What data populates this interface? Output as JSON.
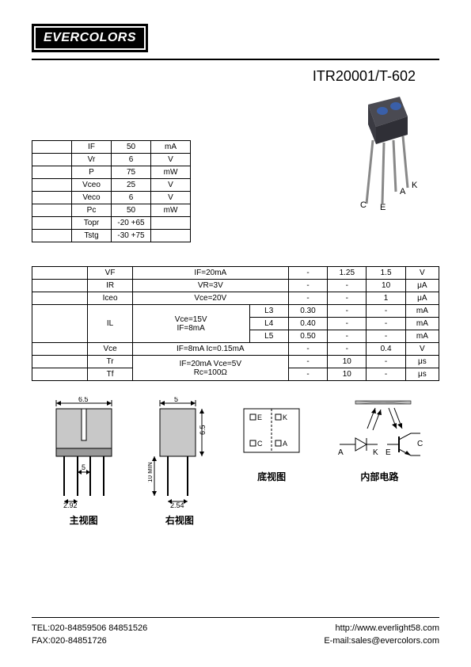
{
  "logo": "EVERCOLORS",
  "part_number": "ITR20001/T-602",
  "table1": {
    "rows": [
      [
        "",
        "IF",
        "50",
        "mA"
      ],
      [
        "",
        "Vr",
        "6",
        "V"
      ],
      [
        "",
        "P",
        "75",
        "mW"
      ],
      [
        "",
        "Vceo",
        "25",
        "V"
      ],
      [
        "",
        "Veco",
        "6",
        "V"
      ],
      [
        "",
        "Pc",
        "50",
        "mW"
      ],
      [
        "",
        "Topr",
        "-20  +65",
        ""
      ],
      [
        "",
        "Tstg",
        "-30  +75",
        ""
      ]
    ]
  },
  "table2": {
    "rows": [
      {
        "c1": "",
        "sym": "VF",
        "cond": "IF=20mA",
        "sub": "",
        "min": "-",
        "typ": "1.25",
        "max": "1.5",
        "unit": "V",
        "rowspan_cond": 1
      },
      {
        "c1": "",
        "sym": "IR",
        "cond": "VR=3V",
        "sub": "",
        "min": "-",
        "typ": "-",
        "max": "10",
        "unit": "μA",
        "rowspan_cond": 1
      },
      {
        "c1": "",
        "sym": "Iceo",
        "cond": "Vce=20V",
        "sub": "",
        "min": "-",
        "typ": "-",
        "max": "1",
        "unit": "μA",
        "rowspan_cond": 1
      },
      {
        "c1": "",
        "sym": "IL",
        "cond": "Vce=15V\nIF=8mA",
        "sub": "L3",
        "min": "0.30",
        "typ": "-",
        "max": "-",
        "unit": "mA",
        "rowspan_sym": 3,
        "rowspan_cond": 3
      },
      {
        "sub": "L4",
        "min": "0.40",
        "typ": "-",
        "max": "-",
        "unit": "mA"
      },
      {
        "sub": "L5",
        "min": "0.50",
        "typ": "-",
        "max": "-",
        "unit": "mA"
      },
      {
        "c1": "",
        "sym": "Vce",
        "cond": "IF=8mA   Ic=0.15mA",
        "sub": "",
        "min": "-",
        "typ": "-",
        "max": "0.4",
        "unit": "V"
      },
      {
        "c1": "",
        "sym": "Tr",
        "cond": "IF=20mA  Vce=5V\nRc=100Ω",
        "sub": "",
        "min": "-",
        "typ": "10",
        "max": "-",
        "unit": "μs",
        "rowspan_cond": 2
      },
      {
        "c1": "",
        "sym": "Tf",
        "sub": "",
        "min": "-",
        "typ": "10",
        "max": "-",
        "unit": "μs"
      }
    ]
  },
  "diagrams": {
    "front_dims": {
      "w": "6.5",
      "pin_w": "2.92",
      "pin_pitch": "5"
    },
    "side_dims": {
      "w": "5",
      "h": "6.5",
      "lead": "10 MIN",
      "pitch": "2.54"
    },
    "bottom_labels": {
      "E": "E",
      "K": "K",
      "C": "C",
      "A": "A"
    },
    "pin_labels": {
      "A": "A",
      "K": "K",
      "C": "C",
      "E": "E"
    },
    "labels": {
      "front": "主视图",
      "side": "右视图",
      "bottom": "底视图",
      "circuit": "内部电路"
    },
    "circuit_labels": {
      "A": "A",
      "K": "K",
      "E": "E",
      "C": "C"
    }
  },
  "footer": {
    "tel": "TEL:020-84859506  84851526",
    "fax": "FAX:020-84851726",
    "web": "http://www.everlight58.com",
    "email": "E-mail:sales@evercolors.com"
  },
  "colors": {
    "black": "#000000",
    "component_body": "#4a4a52",
    "component_lens": "#3a5fa8",
    "lead": "#888888"
  }
}
